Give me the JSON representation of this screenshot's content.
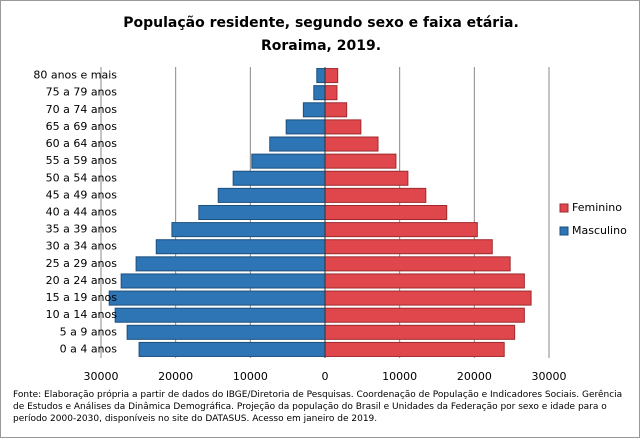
{
  "chart_data": {
    "type": "pyramid",
    "title": "População residente, segundo sexo e faixa etária.",
    "subtitle": "Roraima, 2019.",
    "categories": [
      "0 a 4 anos",
      "5 a 9 anos",
      "10 a 14 anos",
      "15 a 19 anos",
      "20 a 24 anos",
      "25 a 29 anos",
      "30 a 34 anos",
      "35 a 39 anos",
      "40 a 44 anos",
      "45 a 49 anos",
      "50 a 54 anos",
      "55 a 59 anos",
      "60 a 64 anos",
      "65 a 69 anos",
      "70 a 74 anos",
      "75 a 79 anos",
      "80 anos e mais"
    ],
    "series": [
      {
        "name": "Feminino",
        "color": "#e0474c",
        "values": [
          24000,
          25400,
          26700,
          27600,
          26700,
          24800,
          22400,
          20400,
          16300,
          13500,
          11100,
          9500,
          7100,
          4800,
          2900,
          1600,
          1700
        ]
      },
      {
        "name": "Masculino",
        "color": "#2e75b6",
        "values": [
          -24900,
          -26500,
          -28100,
          -28900,
          -27300,
          -25300,
          -22600,
          -20500,
          -16900,
          -14300,
          -12300,
          -9800,
          -7400,
          -5200,
          -2900,
          -1500,
          -1100
        ]
      }
    ],
    "xlim": [
      -30000,
      30000
    ],
    "xticks": [
      {
        "value": -30000,
        "label": "30000"
      },
      {
        "value": -20000,
        "label": "20000"
      },
      {
        "value": -10000,
        "label": "10000"
      },
      0,
      10000,
      20000,
      30000
    ],
    "grid": true,
    "legend": "right",
    "source": "Fonte:  Elaboração própria a partir de dados  do  IBGE/Diretoria de Pesquisas. Coordenação de População e Indicadores Sociais. Gerência de Estudos e Análises da Dinâmica Demográfica. Projeção da população do Brasil e Unidades da Federação por sexo e idade para o período 2000-2030, disponíveis no site do DATASUS. Acesso em  janeiro de 2019."
  }
}
